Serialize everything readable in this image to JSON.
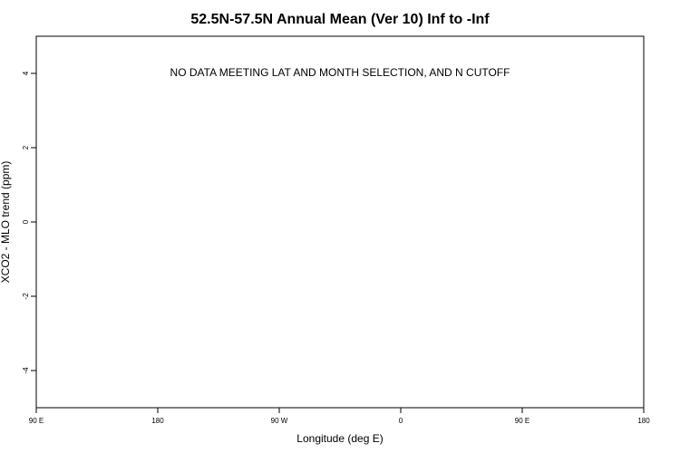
{
  "chart_data": {
    "type": "scatter",
    "title": "52.5N-57.5N Annual Mean (Ver 10)   Inf to -Inf",
    "xlabel": "Longitude (deg E)",
    "ylabel": "XCO2 - MLO trend (ppm)",
    "x_ticks": [
      {
        "value": 90,
        "label": "90 E"
      },
      {
        "value": 180,
        "label": "180"
      },
      {
        "value": 270,
        "label": "90 W"
      },
      {
        "value": 360,
        "label": "0"
      },
      {
        "value": 450,
        "label": "90 E"
      },
      {
        "value": 540,
        "label": "180"
      }
    ],
    "y_ticks": [
      {
        "value": 4,
        "label": "4"
      },
      {
        "value": 2,
        "label": "2"
      },
      {
        "value": 0,
        "label": "0"
      },
      {
        "value": -2,
        "label": "-2"
      },
      {
        "value": -4,
        "label": "-4"
      }
    ],
    "xlim": [
      90,
      540
    ],
    "ylim": [
      -5,
      5
    ],
    "series": [],
    "annotation": "NO DATA MEETING LAT AND MONTH SELECTION, AND N CUTOFF",
    "grid": false
  }
}
